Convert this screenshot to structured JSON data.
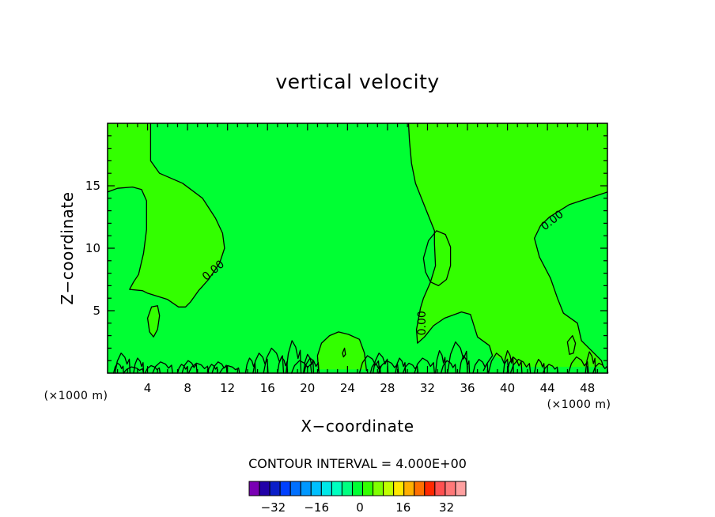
{
  "chart_data": {
    "type": "contour",
    "title": "vertical velocity",
    "xlabel": "X−coordinate",
    "ylabel": "Z−coordinate",
    "x_units": "(×1000 m)",
    "x_units_right": "(×1000 m)",
    "xlim": [
      0,
      50
    ],
    "ylim": [
      0,
      20
    ],
    "x_ticks": [
      4,
      8,
      12,
      16,
      20,
      24,
      28,
      32,
      36,
      40,
      44,
      48
    ],
    "y_ticks": [
      5,
      10,
      15
    ],
    "contour_interval_text": "CONTOUR INTERVAL = 4.000E+00",
    "contour_labels": [
      "0.00",
      "0.00",
      "0.00"
    ],
    "background_field": "#00ff33",
    "positive_region_color": "#33ff00",
    "colorbar": {
      "colors": [
        "#7a00b4",
        "#2200a8",
        "#0a1ec8",
        "#0040ff",
        "#0070ff",
        "#0098ff",
        "#00c0ff",
        "#00e8e8",
        "#00ffc0",
        "#00ff80",
        "#00ff33",
        "#33ff00",
        "#80ff00",
        "#c0ff00",
        "#ffe800",
        "#ffb000",
        "#ff7000",
        "#ff2800",
        "#ff5050",
        "#ff7878",
        "#ffa0a0"
      ],
      "tick_labels": [
        "−32",
        "−16",
        "0",
        "16",
        "32"
      ],
      "tick_values": [
        -32,
        -16,
        0,
        16,
        32
      ],
      "range": [
        -40,
        40
      ]
    }
  }
}
